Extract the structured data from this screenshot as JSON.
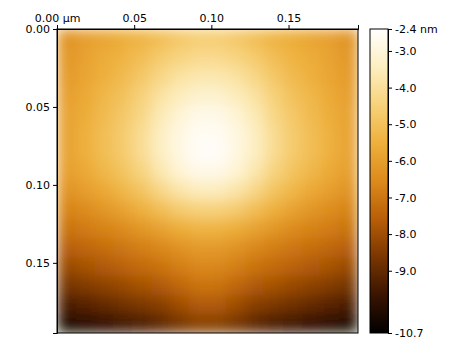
{
  "chart_data": {
    "type": "heatmap",
    "xlim": [
      0,
      0.195
    ],
    "ylim": [
      0,
      0.195
    ],
    "xticks": [
      {
        "value": 0,
        "label": "0.00 µm"
      },
      {
        "value": 0.05,
        "label": "0.05"
      },
      {
        "value": 0.1,
        "label": "0.10"
      },
      {
        "value": 0.15,
        "label": "0.15"
      }
    ],
    "yticks": [
      {
        "value": 0,
        "label": "0.00"
      },
      {
        "value": 0.05,
        "label": "0.05"
      },
      {
        "value": 0.1,
        "label": "0.10"
      },
      {
        "value": 0.15,
        "label": "0.15"
      }
    ],
    "zlim": [
      -10.7,
      -2.4
    ],
    "zticks": [
      {
        "value": -2.4,
        "label": "-2.4 nm"
      },
      {
        "value": -3,
        "label": "-3.0"
      },
      {
        "value": -4,
        "label": "-4.0"
      },
      {
        "value": -5,
        "label": "-5.0"
      },
      {
        "value": -6,
        "label": "-6.0"
      },
      {
        "value": -7,
        "label": "-7.0"
      },
      {
        "value": -8,
        "label": "-8.0"
      },
      {
        "value": -9,
        "label": "-9.0"
      },
      {
        "value": -10.7,
        "label": "-10.7"
      }
    ],
    "z": [
      [
        -6.3,
        -6.0,
        -5.8,
        -5.6,
        -5.4,
        -5.1,
        -4.8,
        -4.6,
        -4.6,
        -4.8,
        -5.1,
        -5.4,
        -5.6,
        -5.8,
        -6.0,
        -6.3
      ],
      [
        -6.2,
        -5.9,
        -5.6,
        -5.4,
        -5.1,
        -4.7,
        -4.4,
        -4.2,
        -4.2,
        -4.4,
        -4.7,
        -5.1,
        -5.4,
        -5.6,
        -5.9,
        -6.2
      ],
      [
        -6.1,
        -5.8,
        -5.5,
        -5.2,
        -4.8,
        -4.3,
        -3.9,
        -3.7,
        -3.7,
        -3.9,
        -4.3,
        -4.8,
        -5.2,
        -5.5,
        -5.8,
        -6.1
      ],
      [
        -6.0,
        -5.7,
        -5.3,
        -5.0,
        -4.5,
        -3.9,
        -3.5,
        -3.2,
        -3.2,
        -3.5,
        -3.9,
        -4.5,
        -5.0,
        -5.3,
        -5.7,
        -6.0
      ],
      [
        -5.9,
        -5.6,
        -5.2,
        -4.8,
        -4.3,
        -3.6,
        -3.1,
        -2.8,
        -2.8,
        -3.1,
        -3.6,
        -4.3,
        -4.8,
        -5.2,
        -5.6,
        -5.9
      ],
      [
        -5.9,
        -5.5,
        -5.1,
        -4.7,
        -4.1,
        -3.4,
        -2.9,
        -2.6,
        -2.6,
        -2.9,
        -3.4,
        -4.1,
        -4.7,
        -5.1,
        -5.5,
        -5.9
      ],
      [
        -5.9,
        -5.5,
        -5.1,
        -4.7,
        -4.1,
        -3.4,
        -2.9,
        -2.5,
        -2.5,
        -2.9,
        -3.4,
        -4.1,
        -4.7,
        -5.1,
        -5.5,
        -5.9
      ],
      [
        -6.0,
        -5.7,
        -5.3,
        -4.9,
        -4.4,
        -3.7,
        -3.1,
        -2.8,
        -2.8,
        -3.1,
        -3.7,
        -4.4,
        -4.9,
        -5.3,
        -5.7,
        -6.0
      ],
      [
        -6.3,
        -6.0,
        -5.7,
        -5.3,
        -4.9,
        -4.3,
        -3.8,
        -3.5,
        -3.5,
        -3.8,
        -4.3,
        -4.9,
        -5.3,
        -5.7,
        -6.0,
        -6.3
      ],
      [
        -6.7,
        -6.5,
        -6.2,
        -5.9,
        -5.5,
        -5.1,
        -4.7,
        -4.5,
        -4.5,
        -4.7,
        -5.1,
        -5.5,
        -5.9,
        -6.2,
        -6.5,
        -6.7
      ],
      [
        -7.1,
        -6.9,
        -6.7,
        -6.5,
        -6.2,
        -5.9,
        -5.6,
        -5.4,
        -5.4,
        -5.6,
        -5.9,
        -6.2,
        -6.5,
        -6.7,
        -6.9,
        -7.1
      ],
      [
        -7.6,
        -7.4,
        -7.2,
        -7.0,
        -6.8,
        -6.6,
        -6.3,
        -6.1,
        -6.1,
        -6.3,
        -6.6,
        -6.8,
        -7.0,
        -7.2,
        -7.4,
        -7.6
      ],
      [
        -8.1,
        -7.9,
        -7.7,
        -7.5,
        -7.3,
        -7.1,
        -6.8,
        -6.6,
        -6.6,
        -6.8,
        -7.1,
        -7.3,
        -7.5,
        -7.7,
        -7.9,
        -8.1
      ],
      [
        -8.7,
        -8.5,
        -8.3,
        -8.1,
        -7.9,
        -7.7,
        -7.4,
        -7.1,
        -7.1,
        -7.4,
        -7.7,
        -7.9,
        -8.1,
        -8.3,
        -8.5,
        -8.7
      ],
      [
        -9.4,
        -9.2,
        -9.0,
        -8.8,
        -8.6,
        -8.4,
        -8.0,
        -7.7,
        -7.7,
        -8.0,
        -8.4,
        -8.6,
        -8.8,
        -9.0,
        -9.2,
        -9.4
      ],
      [
        -10.2,
        -10.0,
        -9.8,
        -9.6,
        -9.4,
        -9.1,
        -8.7,
        -8.4,
        -8.4,
        -8.7,
        -9.1,
        -9.4,
        -9.6,
        -9.8,
        -10.0,
        -10.2
      ]
    ]
  }
}
